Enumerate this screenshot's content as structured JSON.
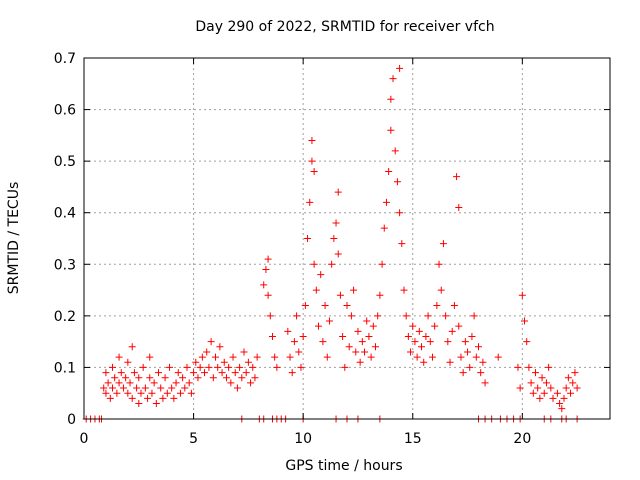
{
  "chart_data": {
    "type": "scatter",
    "title": "Day 290 of 2022, SRMTID for receiver vfch",
    "xlabel": "GPS time / hours",
    "ylabel": "SRMTID / TECUs",
    "xlim": [
      0,
      24
    ],
    "ylim": [
      0,
      0.7
    ],
    "xticks": [
      "0",
      "5",
      "10",
      "15",
      "20"
    ],
    "yticks": [
      "0",
      "0.1",
      "0.2",
      "0.3",
      "0.4",
      "0.5",
      "0.6",
      "0.7"
    ],
    "grid": true,
    "marker": "+",
    "color": "#ff0000",
    "series": [
      {
        "name": "SRMTID",
        "points": [
          [
            0.1,
            0.0
          ],
          [
            0.3,
            0.0
          ],
          [
            0.5,
            0.0
          ],
          [
            0.7,
            0.0
          ],
          [
            0.8,
            0.0
          ],
          [
            0.9,
            0.06
          ],
          [
            1.0,
            0.09
          ],
          [
            1.0,
            0.05
          ],
          [
            1.1,
            0.07
          ],
          [
            1.2,
            0.04
          ],
          [
            1.3,
            0.1
          ],
          [
            1.3,
            0.06
          ],
          [
            1.4,
            0.08
          ],
          [
            1.5,
            0.05
          ],
          [
            1.6,
            0.12
          ],
          [
            1.6,
            0.07
          ],
          [
            1.7,
            0.09
          ],
          [
            1.8,
            0.06
          ],
          [
            1.9,
            0.08
          ],
          [
            2.0,
            0.05
          ],
          [
            2.0,
            0.11
          ],
          [
            2.1,
            0.07
          ],
          [
            2.2,
            0.14
          ],
          [
            2.2,
            0.04
          ],
          [
            2.3,
            0.09
          ],
          [
            2.4,
            0.06
          ],
          [
            2.5,
            0.03
          ],
          [
            2.5,
            0.08
          ],
          [
            2.6,
            0.05
          ],
          [
            2.7,
            0.1
          ],
          [
            2.8,
            0.06
          ],
          [
            2.9,
            0.04
          ],
          [
            3.0,
            0.08
          ],
          [
            3.0,
            0.12
          ],
          [
            3.1,
            0.05
          ],
          [
            3.2,
            0.07
          ],
          [
            3.3,
            0.03
          ],
          [
            3.4,
            0.09
          ],
          [
            3.5,
            0.06
          ],
          [
            3.6,
            0.04
          ],
          [
            3.7,
            0.08
          ],
          [
            3.8,
            0.05
          ],
          [
            3.9,
            0.1
          ],
          [
            4.0,
            0.06
          ],
          [
            4.1,
            0.04
          ],
          [
            4.2,
            0.07
          ],
          [
            4.3,
            0.09
          ],
          [
            4.4,
            0.05
          ],
          [
            4.5,
            0.08
          ],
          [
            4.6,
            0.06
          ],
          [
            4.7,
            0.1
          ],
          [
            4.8,
            0.07
          ],
          [
            4.9,
            0.05
          ],
          [
            5.0,
            0.09
          ],
          [
            5.1,
            0.11
          ],
          [
            5.2,
            0.08
          ],
          [
            5.3,
            0.1
          ],
          [
            5.4,
            0.12
          ],
          [
            5.5,
            0.09
          ],
          [
            5.6,
            0.13
          ],
          [
            5.7,
            0.1
          ],
          [
            5.8,
            0.15
          ],
          [
            5.9,
            0.08
          ],
          [
            6.0,
            0.12
          ],
          [
            6.1,
            0.1
          ],
          [
            6.2,
            0.14
          ],
          [
            6.3,
            0.09
          ],
          [
            6.4,
            0.11
          ],
          [
            6.5,
            0.08
          ],
          [
            6.6,
            0.1
          ],
          [
            6.7,
            0.07
          ],
          [
            6.8,
            0.12
          ],
          [
            6.9,
            0.09
          ],
          [
            7.0,
            0.06
          ],
          [
            7.1,
            0.1
          ],
          [
            7.2,
            0.08
          ],
          [
            7.3,
            0.13
          ],
          [
            7.4,
            0.09
          ],
          [
            7.5,
            0.11
          ],
          [
            7.6,
            0.07
          ],
          [
            7.7,
            0.1
          ],
          [
            7.8,
            0.08
          ],
          [
            7.9,
            0.12
          ],
          [
            7.2,
            0.0
          ],
          [
            8.0,
            0.0
          ],
          [
            8.2,
            0.0
          ],
          [
            8.6,
            0.0
          ],
          [
            8.8,
            0.0
          ],
          [
            9.0,
            0.0
          ],
          [
            9.2,
            0.0
          ],
          [
            10.0,
            0.0
          ],
          [
            8.2,
            0.26
          ],
          [
            8.3,
            0.29
          ],
          [
            8.4,
            0.31
          ],
          [
            8.4,
            0.24
          ],
          [
            8.5,
            0.2
          ],
          [
            8.6,
            0.16
          ],
          [
            8.7,
            0.12
          ],
          [
            8.8,
            0.1
          ],
          [
            9.3,
            0.17
          ],
          [
            9.4,
            0.12
          ],
          [
            9.5,
            0.09
          ],
          [
            9.6,
            0.15
          ],
          [
            9.7,
            0.2
          ],
          [
            9.8,
            0.13
          ],
          [
            9.9,
            0.1
          ],
          [
            10.0,
            0.16
          ],
          [
            10.1,
            0.22
          ],
          [
            10.2,
            0.35
          ],
          [
            10.3,
            0.42
          ],
          [
            10.4,
            0.5
          ],
          [
            10.4,
            0.54
          ],
          [
            10.5,
            0.48
          ],
          [
            10.5,
            0.3
          ],
          [
            10.6,
            0.25
          ],
          [
            10.7,
            0.18
          ],
          [
            10.8,
            0.28
          ],
          [
            10.9,
            0.15
          ],
          [
            11.0,
            0.22
          ],
          [
            11.1,
            0.12
          ],
          [
            11.2,
            0.19
          ],
          [
            11.3,
            0.3
          ],
          [
            11.4,
            0.35
          ],
          [
            11.5,
            0.38
          ],
          [
            11.6,
            0.44
          ],
          [
            11.6,
            0.32
          ],
          [
            11.7,
            0.24
          ],
          [
            11.8,
            0.16
          ],
          [
            11.9,
            0.1
          ],
          [
            12.0,
            0.22
          ],
          [
            12.1,
            0.14
          ],
          [
            12.2,
            0.2
          ],
          [
            12.3,
            0.25
          ],
          [
            12.4,
            0.13
          ],
          [
            12.5,
            0.17
          ],
          [
            12.6,
            0.11
          ],
          [
            12.7,
            0.15
          ],
          [
            12.8,
            0.13
          ],
          [
            12.9,
            0.19
          ],
          [
            13.0,
            0.16
          ],
          [
            13.1,
            0.12
          ],
          [
            13.2,
            0.18
          ],
          [
            13.3,
            0.14
          ],
          [
            13.4,
            0.2
          ],
          [
            13.5,
            0.24
          ],
          [
            13.6,
            0.3
          ],
          [
            13.7,
            0.37
          ],
          [
            13.8,
            0.42
          ],
          [
            13.9,
            0.48
          ],
          [
            14.0,
            0.56
          ],
          [
            14.0,
            0.62
          ],
          [
            14.1,
            0.66
          ],
          [
            14.2,
            0.52
          ],
          [
            14.3,
            0.46
          ],
          [
            14.4,
            0.68
          ],
          [
            14.4,
            0.4
          ],
          [
            14.5,
            0.34
          ],
          [
            14.6,
            0.25
          ],
          [
            14.7,
            0.2
          ],
          [
            14.8,
            0.16
          ],
          [
            14.9,
            0.13
          ],
          [
            15.0,
            0.18
          ],
          [
            15.1,
            0.15
          ],
          [
            15.2,
            0.12
          ],
          [
            15.3,
            0.17
          ],
          [
            15.4,
            0.14
          ],
          [
            15.5,
            0.11
          ],
          [
            15.6,
            0.16
          ],
          [
            15.7,
            0.2
          ],
          [
            15.8,
            0.15
          ],
          [
            15.9,
            0.12
          ],
          [
            16.0,
            0.18
          ],
          [
            16.1,
            0.22
          ],
          [
            16.2,
            0.3
          ],
          [
            16.3,
            0.25
          ],
          [
            16.4,
            0.34
          ],
          [
            16.5,
            0.2
          ],
          [
            16.6,
            0.15
          ],
          [
            16.7,
            0.11
          ],
          [
            16.8,
            0.17
          ],
          [
            16.9,
            0.22
          ],
          [
            17.0,
            0.47
          ],
          [
            17.1,
            0.41
          ],
          [
            17.1,
            0.18
          ],
          [
            17.2,
            0.12
          ],
          [
            17.3,
            0.09
          ],
          [
            17.4,
            0.15
          ],
          [
            17.5,
            0.13
          ],
          [
            17.6,
            0.1
          ],
          [
            17.7,
            0.16
          ],
          [
            17.8,
            0.2
          ],
          [
            17.9,
            0.12
          ],
          [
            18.0,
            0.14
          ],
          [
            18.1,
            0.09
          ],
          [
            18.2,
            0.11
          ],
          [
            18.3,
            0.07
          ],
          [
            11.5,
            0.0
          ],
          [
            12.0,
            0.0
          ],
          [
            12.5,
            0.0
          ],
          [
            13.5,
            0.0
          ],
          [
            18.0,
            0.0
          ],
          [
            18.3,
            0.0
          ],
          [
            18.6,
            0.0
          ],
          [
            19.0,
            0.0
          ],
          [
            19.3,
            0.0
          ],
          [
            19.6,
            0.0
          ],
          [
            19.9,
            0.0
          ],
          [
            18.9,
            0.12
          ],
          [
            19.8,
            0.1
          ],
          [
            19.9,
            0.06
          ],
          [
            20.0,
            0.24
          ],
          [
            20.1,
            0.19
          ],
          [
            20.2,
            0.15
          ],
          [
            20.3,
            0.1
          ],
          [
            20.4,
            0.07
          ],
          [
            20.5,
            0.05
          ],
          [
            20.6,
            0.09
          ],
          [
            20.7,
            0.06
          ],
          [
            20.8,
            0.04
          ],
          [
            20.9,
            0.08
          ],
          [
            21.0,
            0.05
          ],
          [
            21.1,
            0.07
          ],
          [
            21.2,
            0.1
          ],
          [
            21.3,
            0.06
          ],
          [
            21.4,
            0.04
          ],
          [
            21.6,
            0.05
          ],
          [
            21.7,
            0.03
          ],
          [
            21.8,
            0.02
          ],
          [
            21.9,
            0.04
          ],
          [
            22.0,
            0.06
          ],
          [
            22.1,
            0.08
          ],
          [
            22.2,
            0.05
          ],
          [
            22.3,
            0.07
          ],
          [
            22.4,
            0.09
          ],
          [
            22.5,
            0.06
          ],
          [
            21.0,
            0.0
          ],
          [
            21.3,
            0.0
          ],
          [
            21.8,
            0.0
          ],
          [
            22.0,
            0.0
          ],
          [
            22.5,
            0.0
          ]
        ]
      }
    ]
  }
}
